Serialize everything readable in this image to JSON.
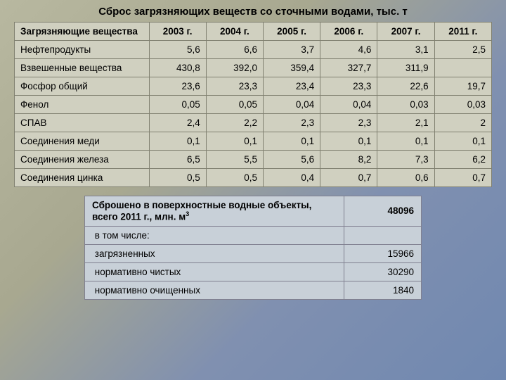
{
  "title": "Сброс загрязняющих веществ со сточными водами, тыс. т",
  "main_table": {
    "header_first": "Загрязняющие вещества",
    "years": [
      "2003 г.",
      "2004 г.",
      "2005 г.",
      "2006 г.",
      "2007 г.",
      "2011 г."
    ],
    "rows": [
      {
        "label": "Нефтепродукты",
        "vals": [
          "5,6",
          "6,6",
          "3,7",
          "4,6",
          "3,1",
          "2,5"
        ]
      },
      {
        "label": "Взвешенные вещества",
        "vals": [
          "430,8",
          "392,0",
          "359,4",
          "327,7",
          "311,9",
          ""
        ]
      },
      {
        "label": "Фосфор общий",
        "vals": [
          "23,6",
          "23,3",
          "23,4",
          "23,3",
          "22,6",
          "19,7"
        ]
      },
      {
        "label": "Фенол",
        "vals": [
          "0,05",
          "0,05",
          "0,04",
          "0,04",
          "0,03",
          "0,03"
        ]
      },
      {
        "label": "СПАВ",
        "vals": [
          "2,4",
          "2,2",
          "2,3",
          "2,3",
          "2,1",
          "2"
        ]
      },
      {
        "label": "Соединения меди",
        "vals": [
          "0,1",
          "0,1",
          "0,1",
          "0,1",
          "0,1",
          "0,1"
        ]
      },
      {
        "label": "Соединения железа",
        "vals": [
          "6,5",
          "5,5",
          "5,6",
          "8,2",
          "7,3",
          "6,2"
        ]
      },
      {
        "label": "Соединения цинка",
        "vals": [
          "0,5",
          "0,5",
          "0,4",
          "0,7",
          "0,6",
          "0,7"
        ]
      }
    ],
    "colors": {
      "bg": "#d0d0c0",
      "border": "#808070"
    }
  },
  "sub_table": {
    "header_label_pre": "Сброшено в поверхностные водные объекты, всего 2011 г., млн. м",
    "header_label_sup": "3",
    "header_value": "48096",
    "rows": [
      {
        "label": "в том числе:",
        "val": ""
      },
      {
        "label": "загрязненных",
        "val": "15966"
      },
      {
        "label": "нормативно чистых",
        "val": "30290"
      },
      {
        "label": "нормативно очищенных",
        "val": "1840"
      }
    ],
    "colors": {
      "bg": "#c8d0d8",
      "border": "#808090"
    }
  }
}
